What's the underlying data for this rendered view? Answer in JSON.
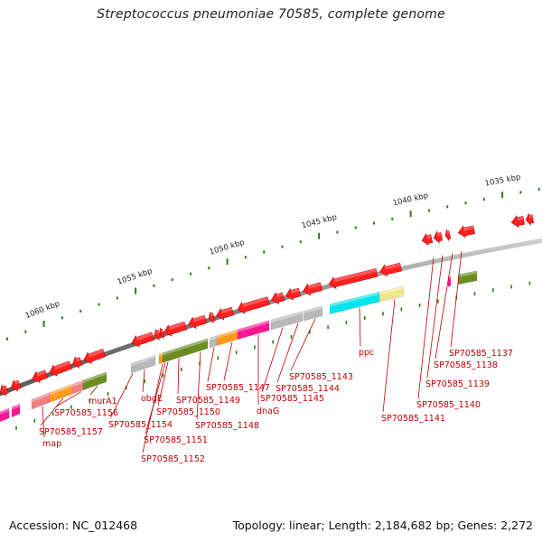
{
  "title": "Streptococcus pneumoniae 70585, complete genome",
  "footer": {
    "accession": "Accession: NC_012468",
    "summary": "Topology: linear; Length: 2,184,682 bp; Genes: 2,272"
  },
  "colors": {
    "backbone": "#8a8a8a",
    "gene_forward": "#ff2020",
    "label": "#c00000",
    "tick": "#2e7d12",
    "cog_green": "#6b8e23",
    "cog_orange": "#ff9a1a",
    "cog_pink": "#ff1493",
    "cog_salmon": "#f08080",
    "cog_gray": "#b8b8b8",
    "cog_cyan": "#00e5ee",
    "cog_khaki": "#f0e68c"
  },
  "ruler_labels": [
    "1060 kbp",
    "1055 kbp",
    "1050 kbp",
    "1045 kbp",
    "1040 kbp",
    "1035 kbp"
  ],
  "gene_labels": [
    "map",
    "SP70585_1157",
    "SP70585_1156",
    "murA1",
    "obgE",
    "SP70585_1154",
    "SP70585_1152",
    "SP70585_1151",
    "SP70585_1150",
    "SP70585_1149",
    "SP70585_1148",
    "SP70585_1147",
    "dnaG",
    "SP70585_1145",
    "SP70585_1144",
    "SP70585_1143",
    "ppc",
    "SP70585_1141",
    "SP70585_1140",
    "SP70585_1139",
    "SP70585_1138",
    "SP70585_1137"
  ]
}
